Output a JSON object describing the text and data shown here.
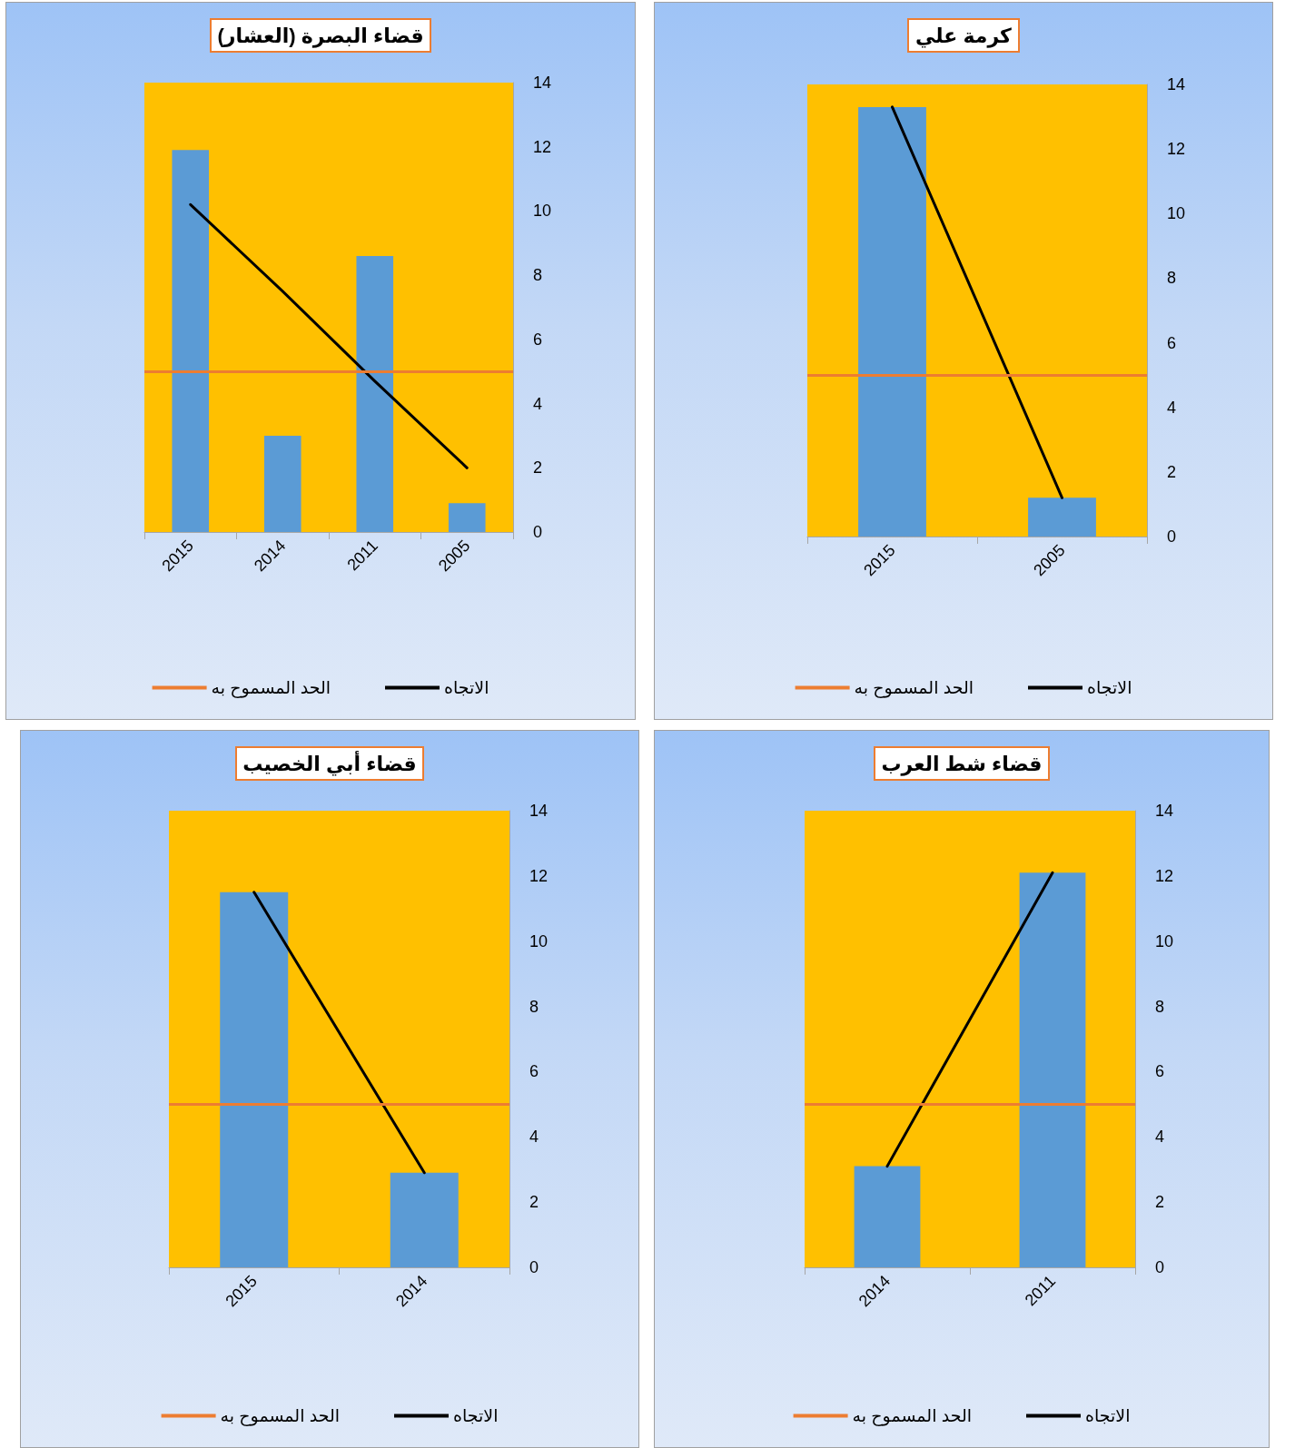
{
  "chart_data": [
    {
      "type": "bar",
      "title": "قضاء البصرة (العشار)",
      "categories": [
        "2015",
        "2014",
        "2011",
        "2005"
      ],
      "series": [
        {
          "color": "#5b9bd5",
          "values": [
            11.9,
            3.0,
            8.6,
            0.9
          ]
        },
        {
          "type": "line",
          "name": "الاتجاه",
          "color": "#000000",
          "values": [
            10.2,
            7.5,
            4.7,
            2.0
          ]
        }
      ],
      "ylim": [
        0,
        14
      ],
      "yticks": [
        0,
        2,
        4,
        6,
        8,
        10,
        12,
        14
      ],
      "ref_lines": [
        {
          "axis": "y",
          "value": 5,
          "label": "الحد المسموح به",
          "color": "#ed7d31"
        }
      ],
      "legend": "bottom",
      "grid": false,
      "marker": "none"
    },
    {
      "type": "bar",
      "title": "كرمة علي",
      "categories": [
        "2015",
        "2005"
      ],
      "series": [
        {
          "color": "#5b9bd5",
          "values": [
            13.3,
            1.2
          ]
        },
        {
          "type": "line",
          "name": "الاتجاه",
          "color": "#000000",
          "values": [
            13.3,
            1.2
          ]
        }
      ],
      "ylim": [
        0,
        14
      ],
      "yticks": [
        0,
        2,
        4,
        6,
        8,
        10,
        12,
        14
      ],
      "ref_lines": [
        {
          "axis": "y",
          "value": 5,
          "label": "الحد المسموح به",
          "color": "#ed7d31"
        }
      ],
      "legend": "bottom",
      "grid": false,
      "marker": "none"
    },
    {
      "type": "bar",
      "title": "قضاء أبي الخصيب",
      "categories": [
        "2015",
        "2014"
      ],
      "series": [
        {
          "color": "#5b9bd5",
          "values": [
            11.5,
            2.9
          ]
        },
        {
          "type": "line",
          "name": "الاتجاه",
          "color": "#000000",
          "values": [
            11.5,
            2.9
          ]
        }
      ],
      "ylim": [
        0,
        14
      ],
      "yticks": [
        0,
        2,
        4,
        6,
        8,
        10,
        12,
        14
      ],
      "ref_lines": [
        {
          "axis": "y",
          "value": 5,
          "label": "الحد المسموح به",
          "color": "#ed7d31"
        }
      ],
      "legend": "bottom",
      "grid": false,
      "marker": "none"
    },
    {
      "type": "bar",
      "title": "قضاء شط العرب",
      "categories": [
        "2014",
        "2011"
      ],
      "series": [
        {
          "color": "#5b9bd5",
          "values": [
            3.1,
            12.1
          ]
        },
        {
          "type": "line",
          "name": "الاتجاه",
          "color": "#000000",
          "values": [
            3.1,
            12.1
          ]
        }
      ],
      "ylim": [
        0,
        14
      ],
      "yticks": [
        0,
        2,
        4,
        6,
        8,
        10,
        12,
        14
      ],
      "ref_lines": [
        {
          "axis": "y",
          "value": 5,
          "label": "الحد المسموح به",
          "color": "#ed7d31"
        }
      ],
      "legend": "bottom",
      "grid": false,
      "marker": "none"
    }
  ]
}
